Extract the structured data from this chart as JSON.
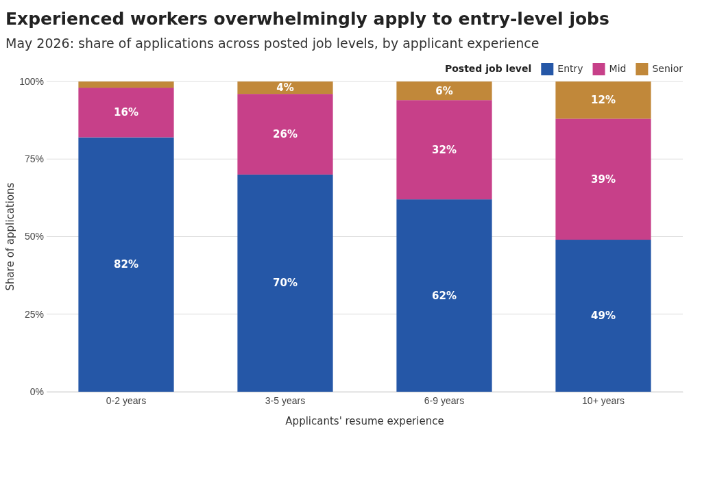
{
  "chart_data": {
    "type": "bar",
    "stacked": true,
    "title": "Experienced workers overwhelmingly apply to entry-level jobs",
    "subtitle": "May 2026: share of applications across posted job levels, by applicant experience",
    "xlabel": "Applicants' resume experience",
    "ylabel": "Share of applications",
    "legend_title": "Posted job level",
    "legend": "top right",
    "grid": "y",
    "categories": [
      "0-2 years",
      "3-5 years",
      "6-9 years",
      "10+ years"
    ],
    "ylim": [
      0,
      100
    ],
    "yticks": [
      {
        "value": 0,
        "label": "0%"
      },
      {
        "value": 25,
        "label": "25%"
      },
      {
        "value": 50,
        "label": "50%"
      },
      {
        "value": 75,
        "label": "75%"
      },
      {
        "value": 100,
        "label": "100%"
      }
    ],
    "series": [
      {
        "name": "Entry",
        "color": "#2557a7",
        "values": [
          82,
          70,
          62,
          49
        ],
        "value_labels": [
          "82%",
          "70%",
          "62%",
          "49%"
        ]
      },
      {
        "name": "Mid",
        "color": "#c74089",
        "values": [
          16,
          26,
          32,
          39
        ],
        "value_labels": [
          "16%",
          "26%",
          "32%",
          "39%"
        ]
      },
      {
        "name": "Senior",
        "color": "#c1883a",
        "values": [
          2,
          4,
          6,
          12
        ],
        "value_labels": [
          null,
          "4%",
          "6%",
          "12%"
        ]
      }
    ]
  }
}
